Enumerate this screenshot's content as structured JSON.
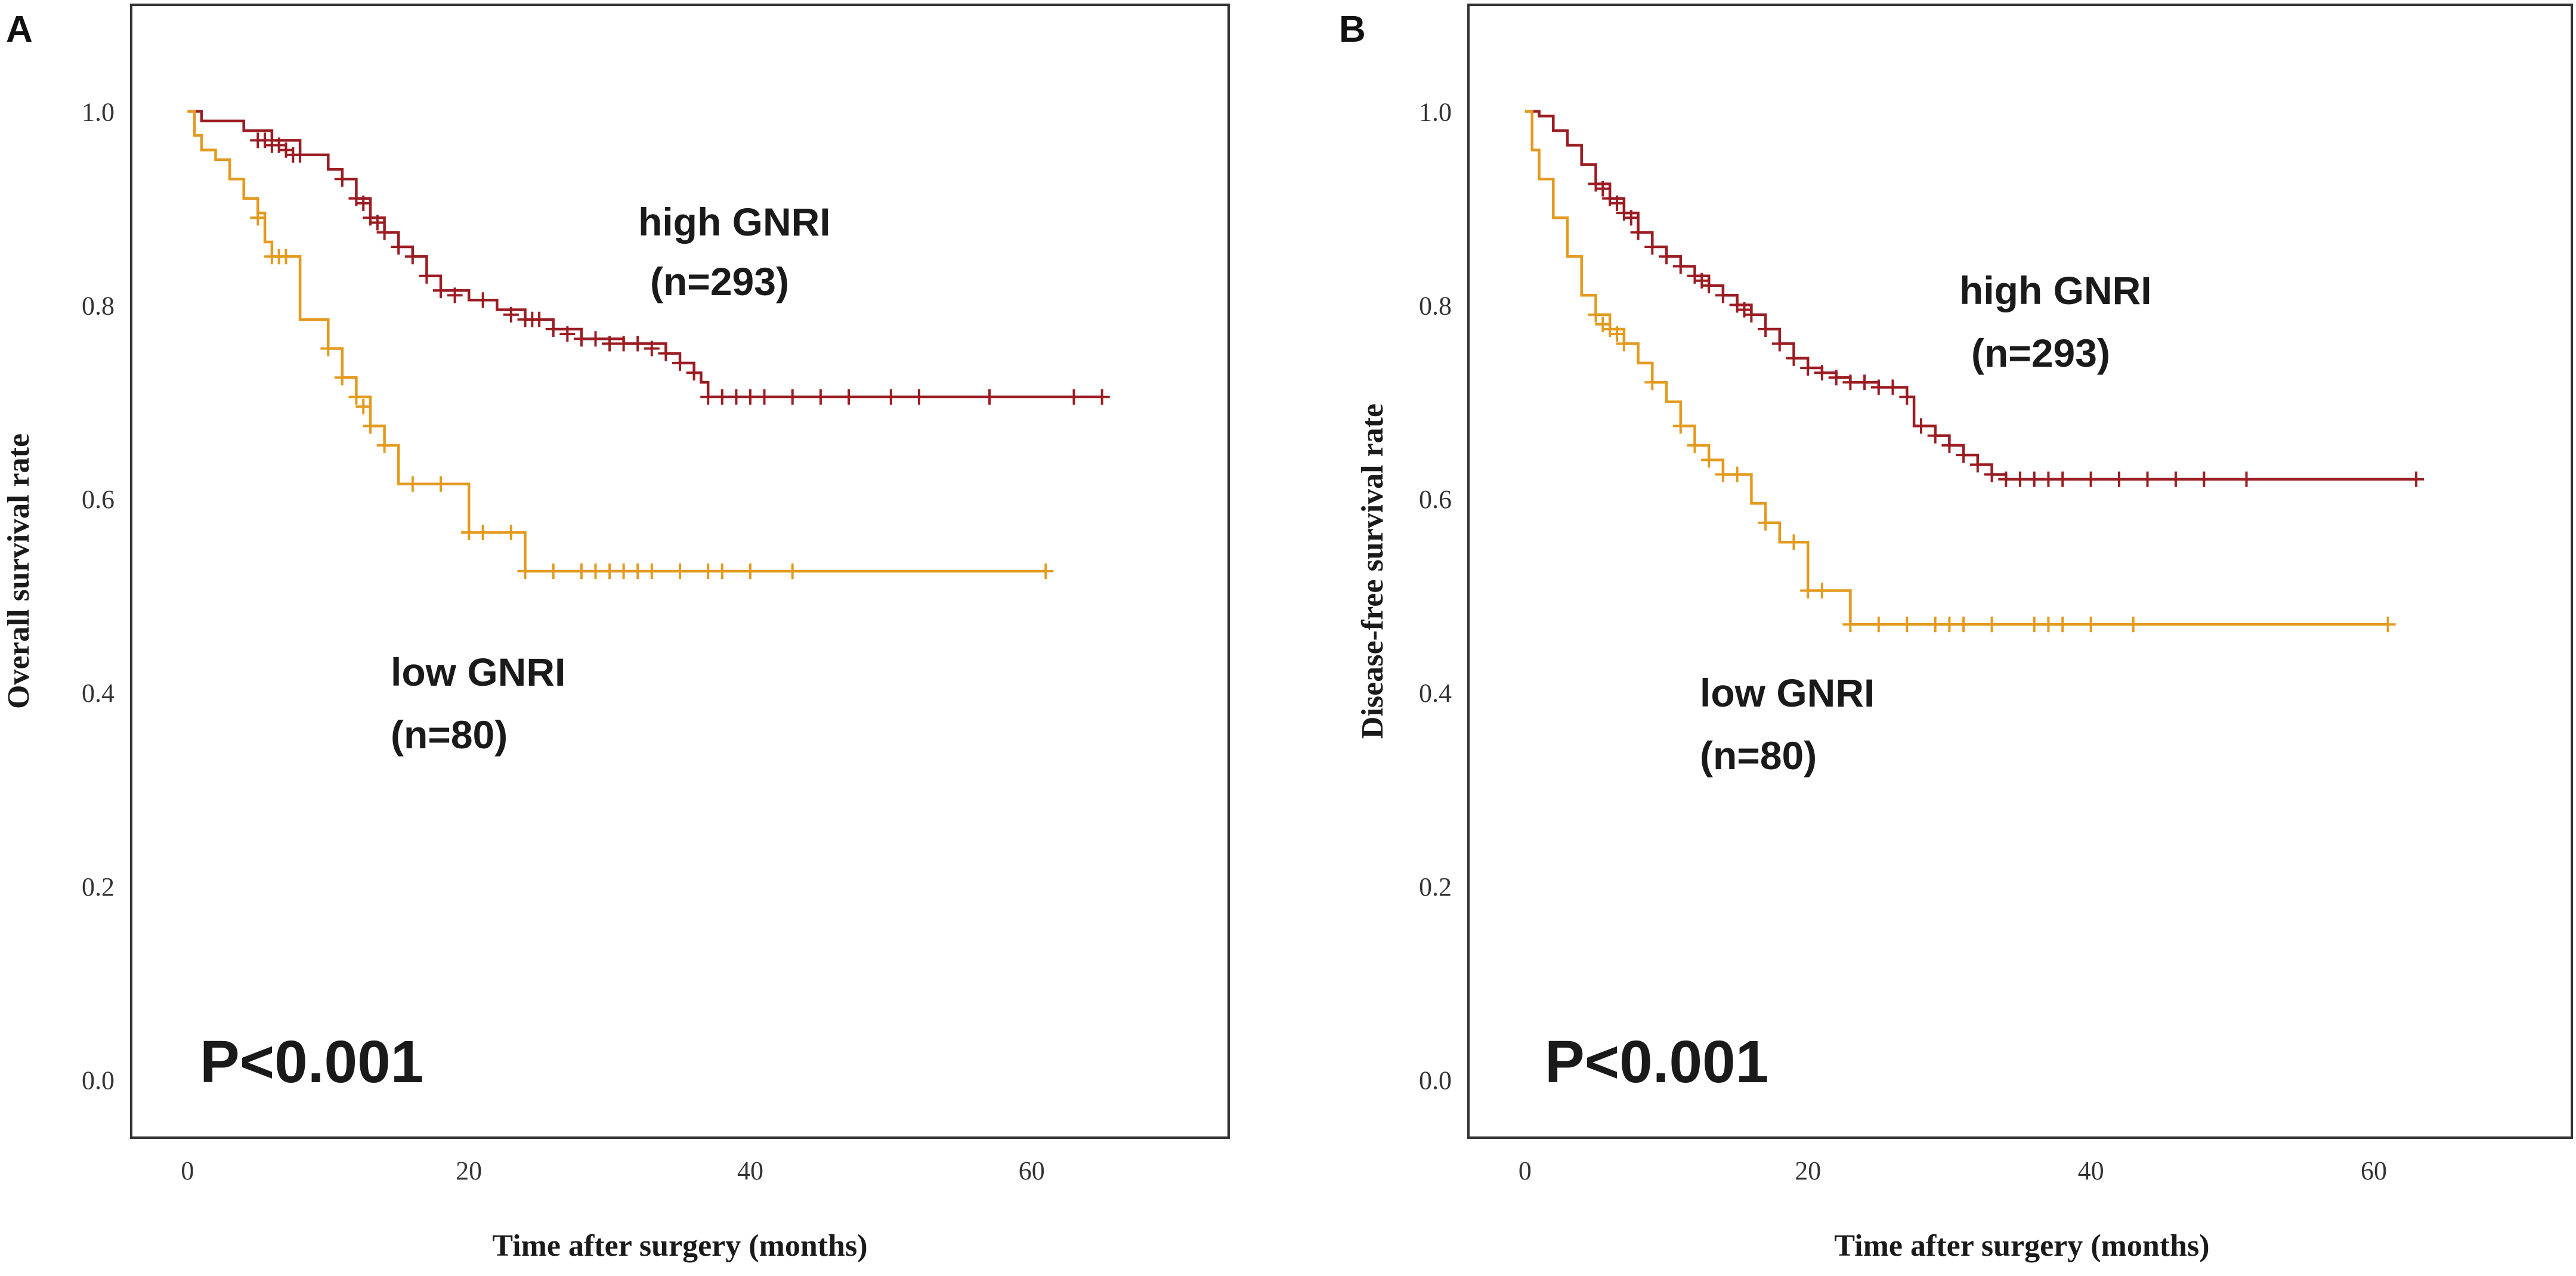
{
  "panels": [
    {
      "id": "A",
      "panel_label": "A",
      "high_label": "high GNRI",
      "high_n": "(n=293)",
      "low_label": "low GNRI",
      "low_n": "(n=80)",
      "p_value": "P<0.001"
    },
    {
      "id": "B",
      "panel_label": "B",
      "high_label": "high GNRI",
      "high_n": "(n=293)",
      "low_label": "low GNRI",
      "low_n": "(n=80)",
      "p_value": "P<0.001"
    }
  ],
  "colors": {
    "high": "#9b1c22",
    "low": "#e39a1e",
    "axis": "#333333",
    "text": "#1a1a1a"
  },
  "chart_data": [
    {
      "type": "line",
      "subtype": "kaplan-meier",
      "title": "",
      "xlabel": "Time after surgery (months)",
      "ylabel": "Overall survival rate",
      "xlim": [
        -4,
        74
      ],
      "ylim": [
        -0.06,
        1.11
      ],
      "xticks": [
        "0",
        "20",
        "40",
        "60"
      ],
      "xtick_values": [
        0,
        20,
        40,
        60
      ],
      "yticks": [
        "0.0",
        "0.2",
        "0.4",
        "0.6",
        "0.8",
        "1.0"
      ],
      "ytick_values": [
        0,
        0.2,
        0.4,
        0.6,
        0.8,
        1.0
      ],
      "series": [
        {
          "name": "high GNRI",
          "n": 293,
          "steps": [
            [
              0,
              1.0
            ],
            [
              1,
              0.99
            ],
            [
              4,
              0.98
            ],
            [
              6,
              0.97
            ],
            [
              8,
              0.955
            ],
            [
              10,
              0.94
            ],
            [
              11,
              0.93
            ],
            [
              12,
              0.91
            ],
            [
              13,
              0.89
            ],
            [
              14,
              0.875
            ],
            [
              15,
              0.86
            ],
            [
              16,
              0.85
            ],
            [
              17,
              0.83
            ],
            [
              18,
              0.815
            ],
            [
              20,
              0.805
            ],
            [
              22,
              0.795
            ],
            [
              24,
              0.785
            ],
            [
              26,
              0.775
            ],
            [
              28,
              0.765
            ],
            [
              31,
              0.76
            ],
            [
              34,
              0.75
            ],
            [
              35,
              0.74
            ],
            [
              36,
              0.73
            ],
            [
              36.5,
              0.72
            ],
            [
              37,
              0.705
            ]
          ],
          "end_time": 65,
          "censored": [
            [
              5,
              0.97
            ],
            [
              5.5,
              0.97
            ],
            [
              6,
              0.965
            ],
            [
              6.5,
              0.965
            ],
            [
              7,
              0.96
            ],
            [
              7.5,
              0.955
            ],
            [
              8,
              0.955
            ],
            [
              11,
              0.93
            ],
            [
              12,
              0.91
            ],
            [
              12.5,
              0.905
            ],
            [
              13,
              0.89
            ],
            [
              13.5,
              0.885
            ],
            [
              14,
              0.875
            ],
            [
              15,
              0.86
            ],
            [
              16,
              0.85
            ],
            [
              17,
              0.83
            ],
            [
              18,
              0.815
            ],
            [
              19,
              0.81
            ],
            [
              21,
              0.805
            ],
            [
              23,
              0.79
            ],
            [
              24,
              0.785
            ],
            [
              24.5,
              0.785
            ],
            [
              25,
              0.785
            ],
            [
              26,
              0.775
            ],
            [
              27,
              0.77
            ],
            [
              28,
              0.765
            ],
            [
              29,
              0.765
            ],
            [
              30,
              0.76
            ],
            [
              31,
              0.76
            ],
            [
              32,
              0.76
            ],
            [
              33,
              0.755
            ],
            [
              34,
              0.75
            ],
            [
              35,
              0.74
            ],
            [
              36,
              0.73
            ],
            [
              37,
              0.705
            ],
            [
              38,
              0.705
            ],
            [
              39,
              0.705
            ],
            [
              40,
              0.705
            ],
            [
              41,
              0.705
            ],
            [
              43,
              0.705
            ],
            [
              45,
              0.705
            ],
            [
              47,
              0.705
            ],
            [
              50,
              0.705
            ],
            [
              52,
              0.705
            ],
            [
              57,
              0.705
            ],
            [
              63,
              0.705
            ],
            [
              65,
              0.705
            ]
          ]
        },
        {
          "name": "low GNRI",
          "n": 80,
          "steps": [
            [
              0,
              1.0
            ],
            [
              0.5,
              0.975
            ],
            [
              1,
              0.96
            ],
            [
              2,
              0.95
            ],
            [
              3,
              0.93
            ],
            [
              4,
              0.91
            ],
            [
              5,
              0.895
            ],
            [
              5.5,
              0.865
            ],
            [
              6,
              0.85
            ],
            [
              7,
              0.85
            ],
            [
              8,
              0.785
            ],
            [
              10,
              0.755
            ],
            [
              11,
              0.725
            ],
            [
              12,
              0.705
            ],
            [
              13,
              0.675
            ],
            [
              14,
              0.655
            ],
            [
              15,
              0.615
            ],
            [
              20,
              0.565
            ],
            [
              24,
              0.525
            ]
          ],
          "end_time": 61,
          "censored": [
            [
              5,
              0.89
            ],
            [
              6,
              0.85
            ],
            [
              6.5,
              0.85
            ],
            [
              7,
              0.85
            ],
            [
              10,
              0.755
            ],
            [
              11,
              0.725
            ],
            [
              12,
              0.705
            ],
            [
              12.5,
              0.695
            ],
            [
              13,
              0.675
            ],
            [
              14,
              0.655
            ],
            [
              16,
              0.615
            ],
            [
              18,
              0.615
            ],
            [
              20,
              0.565
            ],
            [
              21,
              0.565
            ],
            [
              23,
              0.565
            ],
            [
              24,
              0.525
            ],
            [
              26,
              0.525
            ],
            [
              28,
              0.525
            ],
            [
              29,
              0.525
            ],
            [
              30,
              0.525
            ],
            [
              31,
              0.525
            ],
            [
              32,
              0.525
            ],
            [
              33,
              0.525
            ],
            [
              35,
              0.525
            ],
            [
              37,
              0.525
            ],
            [
              38,
              0.525
            ],
            [
              40,
              0.525
            ],
            [
              43,
              0.525
            ],
            [
              61,
              0.525
            ]
          ]
        }
      ]
    },
    {
      "type": "line",
      "subtype": "kaplan-meier",
      "title": "",
      "xlabel": "Time after surgery (months)",
      "ylabel": "Disease-free survival rate",
      "xlim": [
        -4,
        74
      ],
      "ylim": [
        -0.06,
        1.11
      ],
      "xticks": [
        "0",
        "20",
        "40",
        "60"
      ],
      "xtick_values": [
        0,
        20,
        40,
        60
      ],
      "yticks": [
        "0.0",
        "0.2",
        "0.4",
        "0.6",
        "0.8",
        "1.0"
      ],
      "ytick_values": [
        0,
        0.2,
        0.4,
        0.6,
        0.8,
        1.0
      ],
      "series": [
        {
          "name": "high GNRI",
          "n": 293,
          "steps": [
            [
              0,
              1.0
            ],
            [
              1,
              0.995
            ],
            [
              2,
              0.98
            ],
            [
              3,
              0.965
            ],
            [
              4,
              0.945
            ],
            [
              5,
              0.925
            ],
            [
              6,
              0.91
            ],
            [
              7,
              0.895
            ],
            [
              8,
              0.875
            ],
            [
              9,
              0.86
            ],
            [
              10,
              0.85
            ],
            [
              11,
              0.84
            ],
            [
              12,
              0.83
            ],
            [
              13,
              0.82
            ],
            [
              14,
              0.81
            ],
            [
              15,
              0.8
            ],
            [
              16,
              0.79
            ],
            [
              17,
              0.775
            ],
            [
              18,
              0.76
            ],
            [
              19,
              0.745
            ],
            [
              20,
              0.735
            ],
            [
              21,
              0.73
            ],
            [
              22,
              0.725
            ],
            [
              23,
              0.72
            ],
            [
              25,
              0.715
            ],
            [
              27,
              0.705
            ],
            [
              27.5,
              0.675
            ],
            [
              29,
              0.665
            ],
            [
              30,
              0.655
            ],
            [
              31,
              0.645
            ],
            [
              32,
              0.635
            ],
            [
              33,
              0.625
            ],
            [
              34,
              0.62
            ]
          ],
          "end_time": 63,
          "censored": [
            [
              5,
              0.925
            ],
            [
              5.5,
              0.92
            ],
            [
              6,
              0.91
            ],
            [
              6.5,
              0.905
            ],
            [
              7,
              0.895
            ],
            [
              7.5,
              0.89
            ],
            [
              8,
              0.875
            ],
            [
              9,
              0.86
            ],
            [
              10,
              0.85
            ],
            [
              11,
              0.84
            ],
            [
              12,
              0.83
            ],
            [
              12.5,
              0.825
            ],
            [
              13,
              0.82
            ],
            [
              14,
              0.81
            ],
            [
              15,
              0.8
            ],
            [
              15.5,
              0.795
            ],
            [
              16,
              0.79
            ],
            [
              17,
              0.775
            ],
            [
              18,
              0.76
            ],
            [
              19,
              0.745
            ],
            [
              20,
              0.735
            ],
            [
              21,
              0.73
            ],
            [
              22,
              0.725
            ],
            [
              23,
              0.72
            ],
            [
              24,
              0.72
            ],
            [
              25,
              0.715
            ],
            [
              26,
              0.715
            ],
            [
              27,
              0.705
            ],
            [
              28,
              0.675
            ],
            [
              29,
              0.665
            ],
            [
              30,
              0.655
            ],
            [
              31,
              0.645
            ],
            [
              32,
              0.635
            ],
            [
              33,
              0.625
            ],
            [
              34,
              0.62
            ],
            [
              35,
              0.62
            ],
            [
              36,
              0.62
            ],
            [
              37,
              0.62
            ],
            [
              38,
              0.62
            ],
            [
              40,
              0.62
            ],
            [
              42,
              0.62
            ],
            [
              44,
              0.62
            ],
            [
              46,
              0.62
            ],
            [
              48,
              0.62
            ],
            [
              51,
              0.62
            ],
            [
              63,
              0.62
            ]
          ]
        },
        {
          "name": "low GNRI",
          "n": 80,
          "steps": [
            [
              0,
              1.0
            ],
            [
              0.5,
              0.96
            ],
            [
              1,
              0.93
            ],
            [
              2,
              0.89
            ],
            [
              3,
              0.85
            ],
            [
              4,
              0.81
            ],
            [
              5,
              0.79
            ],
            [
              6,
              0.775
            ],
            [
              7,
              0.76
            ],
            [
              8,
              0.74
            ],
            [
              9,
              0.72
            ],
            [
              10,
              0.7
            ],
            [
              11,
              0.675
            ],
            [
              12,
              0.655
            ],
            [
              13,
              0.64
            ],
            [
              14,
              0.625
            ],
            [
              16,
              0.595
            ],
            [
              17,
              0.575
            ],
            [
              18,
              0.555
            ],
            [
              19,
              0.555
            ],
            [
              20,
              0.505
            ],
            [
              23,
              0.47
            ]
          ],
          "end_time": 61,
          "censored": [
            [
              5,
              0.79
            ],
            [
              5.5,
              0.78
            ],
            [
              6,
              0.775
            ],
            [
              6.5,
              0.77
            ],
            [
              7,
              0.76
            ],
            [
              9,
              0.72
            ],
            [
              11,
              0.675
            ],
            [
              12,
              0.655
            ],
            [
              13,
              0.64
            ],
            [
              14,
              0.625
            ],
            [
              15,
              0.625
            ],
            [
              17,
              0.575
            ],
            [
              19,
              0.555
            ],
            [
              20,
              0.505
            ],
            [
              21,
              0.505
            ],
            [
              23,
              0.47
            ],
            [
              25,
              0.47
            ],
            [
              27,
              0.47
            ],
            [
              29,
              0.47
            ],
            [
              30,
              0.47
            ],
            [
              31,
              0.47
            ],
            [
              33,
              0.47
            ],
            [
              36,
              0.47
            ],
            [
              37,
              0.47
            ],
            [
              38,
              0.47
            ],
            [
              40,
              0.47
            ],
            [
              43,
              0.47
            ],
            [
              61,
              0.47
            ]
          ]
        }
      ]
    }
  ]
}
